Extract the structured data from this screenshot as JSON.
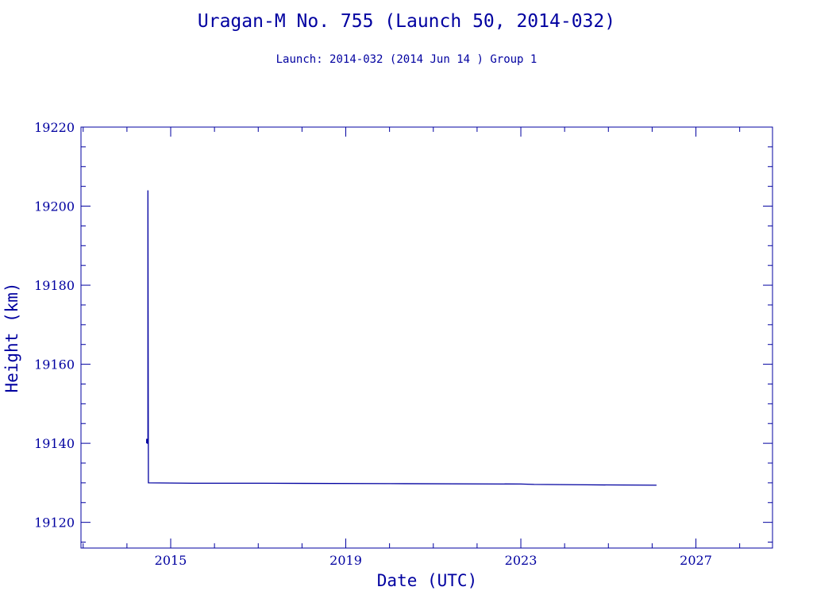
{
  "header": {
    "title": "Uragan-M No. 755 (Launch 50, 2014-032)",
    "subtitle": "Launch: 2014-032  (2014 Jun 14 )  Group 1"
  },
  "colors": {
    "axis": "#0000a0",
    "text": "#0000a0",
    "line": "#0000a0",
    "background": "#ffffff"
  },
  "chart_data": {
    "type": "line",
    "title": "Uragan-M No. 755 (Launch 50, 2014-032)",
    "subtitle": "Launch: 2014-032  (2014 Jun 14 )  Group 1",
    "xlabel": "Date (UTC)",
    "ylabel": "Height (km)",
    "x_unit": "year",
    "xlim": [
      2012.95,
      2028.75
    ],
    "ylim": [
      19113.5,
      19220
    ],
    "x_ticks": [
      2015,
      2019,
      2023,
      2027
    ],
    "x_tick_labels": [
      "2015",
      "2019",
      "2023",
      "2027"
    ],
    "y_ticks": [
      19120,
      19140,
      19160,
      19180,
      19200,
      19220
    ],
    "y_tick_labels": [
      "19120",
      "19140",
      "19160",
      "19180",
      "19200",
      "19220"
    ],
    "grid": false,
    "legend": "none",
    "series": [
      {
        "x": [
          2014.45,
          2014.45,
          2014.47,
          2014.47,
          2014.48,
          2014.48,
          2014.49,
          2015.5,
          2017.0,
          2020.0,
          2023.0,
          2023.3,
          2024.5,
          2026.1
        ],
        "y": [
          19140,
          19141,
          19141,
          19140,
          19140,
          19204,
          19130,
          19129.9,
          19129.9,
          19129.8,
          19129.7,
          19129.6,
          19129.5,
          19129.4
        ]
      }
    ]
  }
}
